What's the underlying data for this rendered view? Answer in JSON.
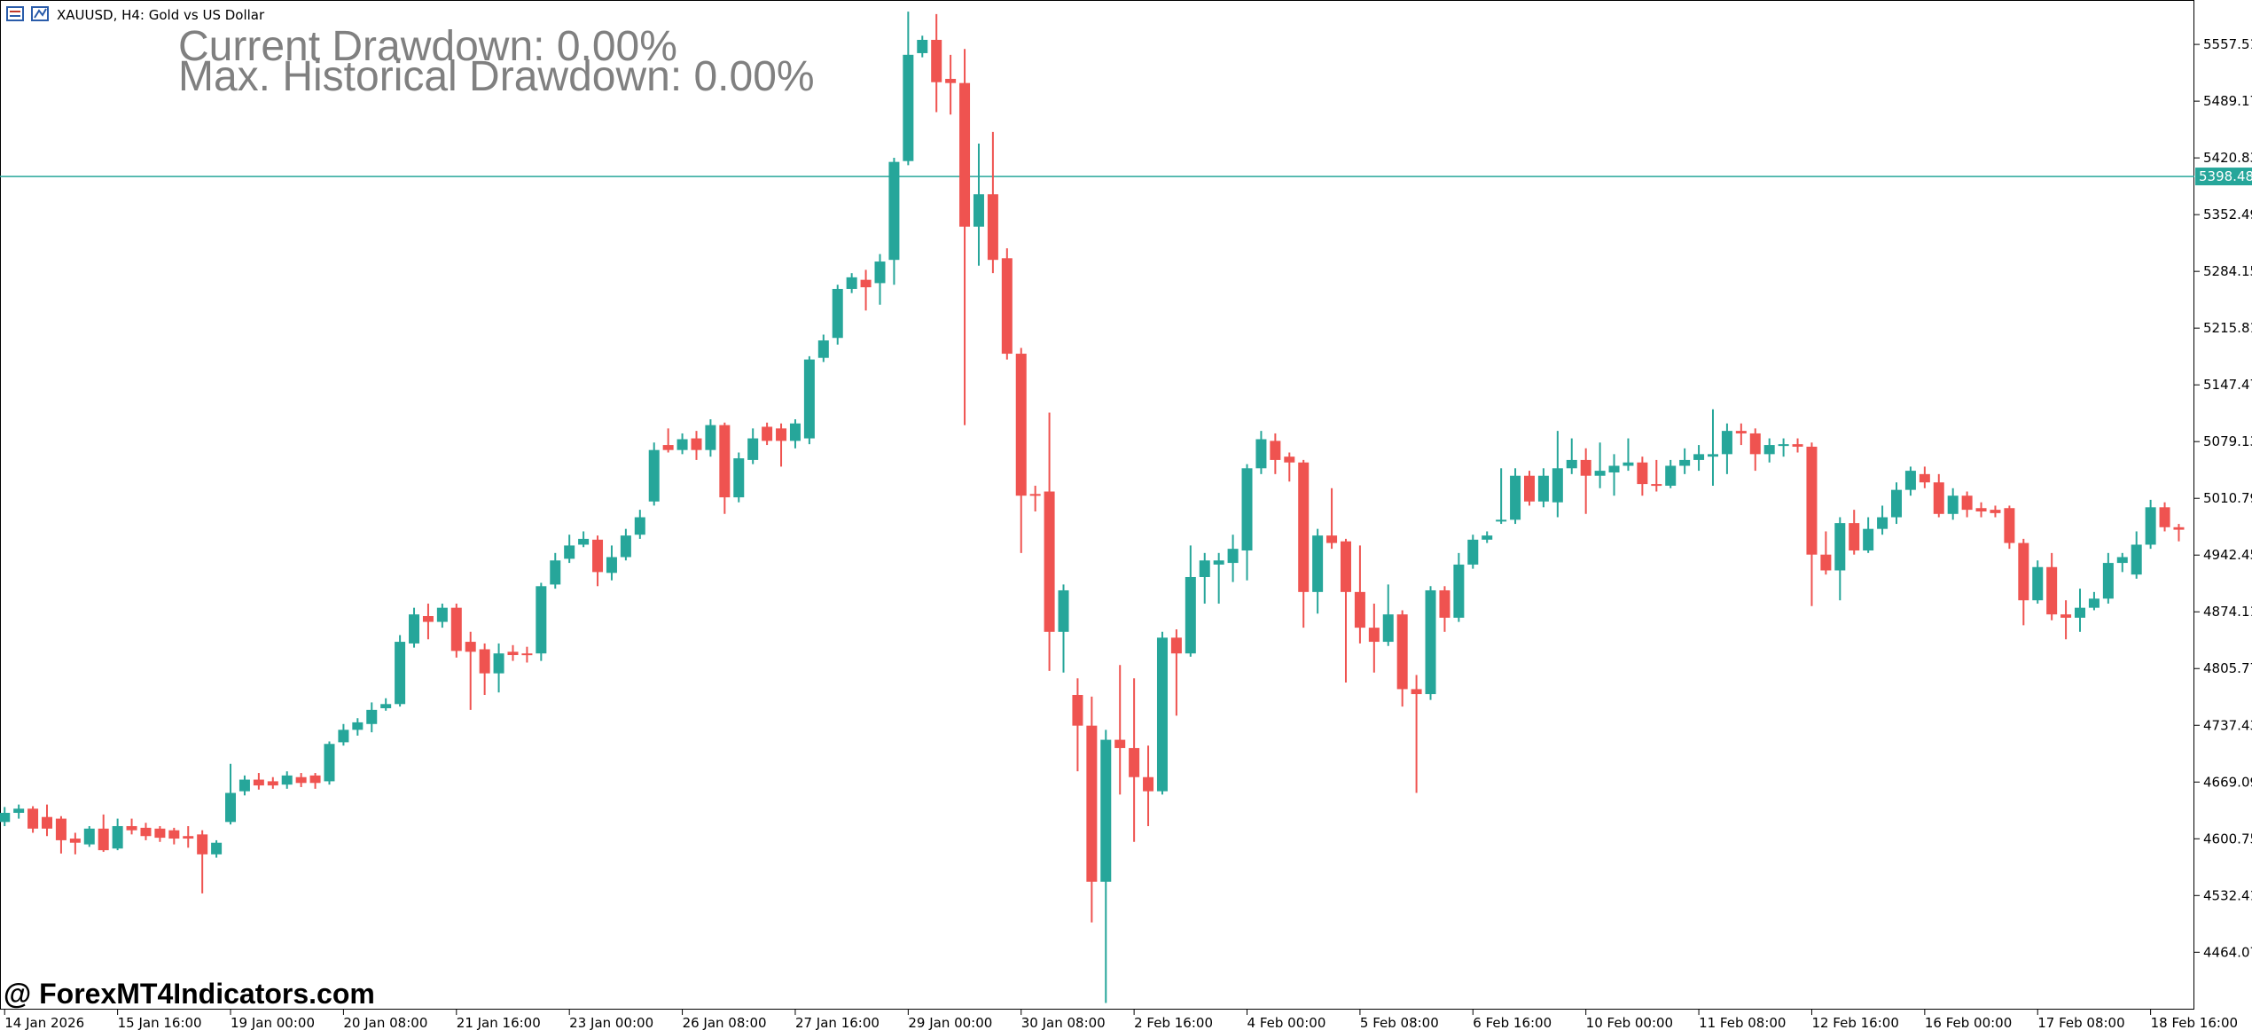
{
  "chart_data": {
    "type": "candlestick",
    "title": "XAUUSD, H4:  Gold vs US Dollar",
    "annotations": [
      "Current Drawdown: 0.00%",
      "Max. Historical Drawdown: 0.00%"
    ],
    "watermark": "@ ForexMT4Indicators.com",
    "up_color": "#26a69a",
    "down_color": "#ef5350",
    "price_line": 5398.48,
    "price_line_color": "#26a69a",
    "ylim": [
      4395,
      5611
    ],
    "yticks": [
      5557.51,
      5489.17,
      5420.83,
      5352.49,
      5284.15,
      5215.81,
      5147.47,
      5079.13,
      5010.79,
      4942.45,
      4874.11,
      4805.77,
      4737.43,
      4669.09,
      4600.75,
      4532.41,
      4464.07
    ],
    "categories": [
      "14 Jan 2026",
      null,
      null,
      null,
      null,
      null,
      null,
      null,
      "15 Jan 16:00",
      null,
      null,
      null,
      null,
      null,
      null,
      null,
      "19 Jan 00:00",
      null,
      null,
      null,
      null,
      null,
      null,
      null,
      "20 Jan 08:00",
      null,
      null,
      null,
      null,
      null,
      null,
      null,
      "21 Jan 16:00",
      null,
      null,
      null,
      null,
      null,
      null,
      null,
      "23 Jan 00:00",
      null,
      null,
      null,
      null,
      null,
      null,
      null,
      "26 Jan 08:00",
      null,
      null,
      null,
      null,
      null,
      null,
      null,
      "27 Jan 16:00",
      null,
      null,
      null,
      null,
      null,
      null,
      null,
      "29 Jan 00:00",
      null,
      null,
      null,
      null,
      null,
      null,
      null,
      "30 Jan 08:00",
      null,
      null,
      null,
      null,
      null,
      null,
      null,
      "2 Feb 16:00",
      null,
      null,
      null,
      null,
      null,
      null,
      null,
      "4 Feb 00:00",
      null,
      null,
      null,
      null,
      null,
      null,
      null,
      "5 Feb 08:00",
      null,
      null,
      null,
      null,
      null,
      null,
      null,
      "6 Feb 16:00",
      null,
      null,
      null,
      null,
      null,
      null,
      null,
      "10 Feb 00:00",
      null,
      null,
      null,
      null,
      null,
      null,
      null,
      "11 Feb 08:00",
      null,
      null,
      null,
      null,
      null,
      null,
      null,
      "12 Feb 16:00",
      null,
      null,
      null,
      null,
      null,
      null,
      null,
      "16 Feb 00:00",
      null,
      null,
      null,
      null,
      null,
      null,
      null,
      "17 Feb 08:00",
      null,
      null,
      null,
      null,
      null,
      null,
      null,
      "18 Feb 16:00",
      null,
      null
    ],
    "open": [
      4621,
      4632,
      4637,
      4627,
      4625,
      4601,
      4594,
      4613,
      4589,
      4616,
      4614,
      4613,
      4611,
      4604,
      4606,
      4582,
      4621,
      4658,
      4672,
      4670,
      4666,
      4675,
      4677,
      4670,
      4717,
      4732,
      4739,
      4758,
      4763,
      4836,
      4869,
      4862,
      4879,
      4838,
      4829,
      4800,
      4826,
      4824,
      4824,
      4907,
      4938,
      4955,
      4961,
      4921,
      4940,
      4967,
      5007,
      5075,
      5069,
      5083,
      5069,
      5099,
      5012,
      5057,
      5097,
      5095,
      5080,
      5083,
      5180,
      5204,
      5263,
      5274,
      5270,
      5298,
      5417,
      5547,
      5563,
      5516,
      5511,
      5338,
      5377,
      5300,
      5185,
      5016,
      5019,
      4850,
      4774,
      4737,
      4549,
      4720,
      4710,
      4675,
      4658,
      4843,
      4824,
      4916,
      4931,
      4933,
      4948,
      5047,
      5080,
      5061,
      5054,
      4898,
      4966,
      4959,
      4898,
      4855,
      4838,
      4871,
      4781,
      4775,
      4900,
      4867,
      4931,
      4961,
      4983,
      4985,
      5038,
      5007,
      5006,
      5047,
      5057,
      5038,
      5042,
      5050,
      5054,
      5028,
      5026,
      5050,
      5057,
      5061,
      5064,
      5092,
      5089,
      5064,
      5075,
      5076,
      5073,
      4943,
      4924,
      4981,
      4948,
      4974,
      4988,
      5021,
      5040,
      5030,
      4992,
      5014,
      4999,
      4997,
      4999,
      4957,
      4888,
      4928,
      4871,
      4867,
      4879,
      4890,
      4933,
      4919,
      4955,
      5000,
      4976
    ],
    "high": [
      4639,
      4642,
      4640,
      4642,
      4628,
      4608,
      4616,
      4630,
      4625,
      4625,
      4620,
      4616,
      4614,
      4616,
      4611,
      4599,
      4691,
      4677,
      4680,
      4675,
      4682,
      4680,
      4680,
      4718,
      4739,
      4746,
      4765,
      4770,
      4846,
      4879,
      4884,
      4884,
      4884,
      4850,
      4836,
      4836,
      4834,
      4832,
      4909,
      4945,
      4967,
      4971,
      4966,
      4954,
      4974,
      4997,
      5078,
      5095,
      5089,
      5092,
      5106,
      5102,
      5066,
      5095,
      5102,
      5101,
      5106,
      5182,
      5208,
      5268,
      5282,
      5286,
      5305,
      5421,
      5597,
      5568,
      5594,
      5545,
      5552,
      5438,
      5452,
      5312,
      5192,
      5026,
      5114,
      4907,
      4794,
      4772,
      4732,
      4810,
      4794,
      4713,
      4850,
      4853,
      4954,
      4945,
      4945,
      4967,
      5052,
      5092,
      5089,
      5066,
      5057,
      4974,
      5023,
      4962,
      4954,
      4884,
      4907,
      4876,
      4798,
      4905,
      4905,
      4945,
      4967,
      4971,
      5047,
      5047,
      5044,
      5047,
      5092,
      5083,
      5071,
      5078,
      5064,
      5083,
      5061,
      5057,
      5057,
      5071,
      5075,
      5118,
      5101,
      5101,
      5095,
      5083,
      5083,
      5083,
      5078,
      4971,
      4988,
      4997,
      4988,
      5002,
      5030,
      5049,
      5049,
      5040,
      5023,
      5019,
      5006,
      5002,
      5002,
      4962,
      4936,
      4945,
      4888,
      4902,
      4898,
      4945,
      4945,
      4971,
      5009,
      5006,
      4980
    ],
    "low": [
      4616,
      4625,
      4608,
      4604,
      4583,
      4582,
      4591,
      4585,
      4587,
      4606,
      4599,
      4597,
      4594,
      4590,
      4535,
      4578,
      4618,
      4653,
      4660,
      4661,
      4661,
      4663,
      4661,
      4666,
      4713,
      4725,
      4729,
      4755,
      4760,
      4831,
      4841,
      4855,
      4819,
      4756,
      4774,
      4777,
      4815,
      4813,
      4815,
      4902,
      4933,
      4952,
      4905,
      4912,
      4936,
      4962,
      5002,
      5066,
      5064,
      5057,
      5061,
      4992,
      5006,
      5052,
      5075,
      5049,
      5071,
      5076,
      5175,
      5196,
      5258,
      5237,
      5244,
      5268,
      5412,
      5542,
      5476,
      5473,
      5099,
      5291,
      5282,
      5178,
      4945,
      4995,
      4803,
      4801,
      4682,
      4500,
      4403,
      4654,
      4597,
      4616,
      4654,
      4749,
      4820,
      4884,
      4884,
      4910,
      4912,
      5040,
      5040,
      5031,
      4855,
      4872,
      4950,
      4789,
      4836,
      4801,
      4833,
      4760,
      4656,
      4768,
      4850,
      4862,
      4926,
      4957,
      4980,
      4980,
      5002,
      5000,
      4988,
      5040,
      4992,
      5023,
      5014,
      5044,
      5014,
      5019,
      5023,
      5040,
      5044,
      5026,
      5040,
      5075,
      5044,
      5054,
      5061,
      5066,
      4881,
      4919,
      4888,
      4943,
      4945,
      4967,
      4980,
      5014,
      5023,
      4988,
      4985,
      4988,
      4988,
      4988,
      4950,
      4858,
      4884,
      4864,
      4841,
      4850,
      4876,
      4884,
      4922,
      4914,
      4950,
      4971,
      4959
    ],
    "close": [
      4632,
      4637,
      4613,
      4613,
      4599,
      4596,
      4613,
      4587,
      4616,
      4611,
      4604,
      4602,
      4601,
      4601,
      4582,
      4596,
      4656,
      4672,
      4665,
      4665,
      4677,
      4668,
      4668,
      4715,
      4732,
      4741,
      4756,
      4763,
      4838,
      4871,
      4862,
      4879,
      4827,
      4826,
      4800,
      4824,
      4822,
      4822,
      4905,
      4936,
      4954,
      4962,
      4922,
      4940,
      4966,
      4988,
      5069,
      5069,
      5082,
      5069,
      5099,
      5012,
      5059,
      5083,
      5080,
      5080,
      5101,
      5178,
      5201,
      5263,
      5277,
      5265,
      5296,
      5416,
      5545,
      5563,
      5512,
      5511,
      5338,
      5377,
      5298,
      5185,
      5014,
      5014,
      4850,
      4900,
      4737,
      4549,
      4720,
      4710,
      4675,
      4658,
      4843,
      4824,
      4916,
      4936,
      4936,
      4950,
      5047,
      5082,
      5057,
      5054,
      4898,
      4966,
      4957,
      4898,
      4855,
      4838,
      4871,
      4781,
      4775,
      4900,
      4867,
      4931,
      4961,
      4966,
      4985,
      5038,
      5007,
      5038,
      5047,
      5057,
      5038,
      5044,
      5050,
      5054,
      5028,
      5026,
      5050,
      5057,
      5064,
      5064,
      5092,
      5089,
      5064,
      5075,
      5076,
      5073,
      4943,
      4924,
      4981,
      4948,
      4974,
      4988,
      5021,
      5044,
      5030,
      4992,
      5014,
      4997,
      4995,
      4993,
      4957,
      4888,
      4928,
      4871,
      4867,
      4879,
      4890,
      4933,
      4940,
      4955,
      5000,
      4976,
      4973
    ]
  }
}
